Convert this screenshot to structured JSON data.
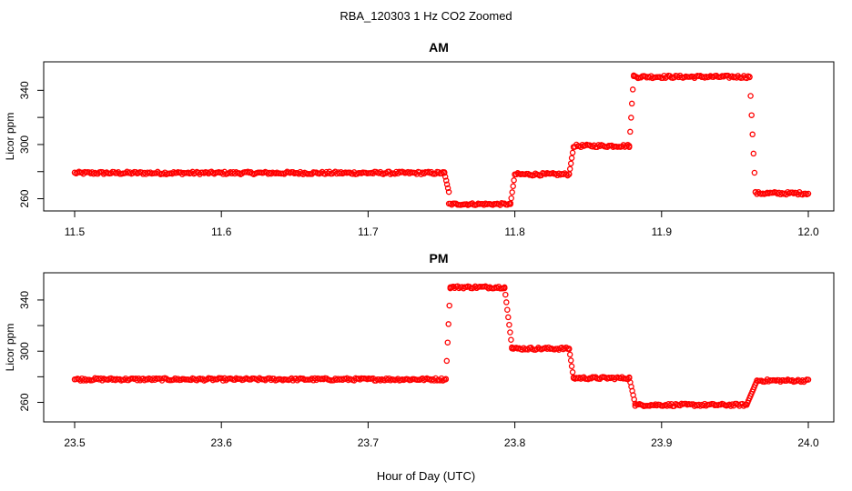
{
  "title": "RBA_120303  1 Hz CO2 Zoomed",
  "xlabel": "Hour of Day (UTC)",
  "chart_data": [
    {
      "type": "scatter",
      "title": "AM",
      "ylabel": "Licor ppm",
      "xlim": [
        11.5,
        12.0
      ],
      "ylim": [
        255,
        357
      ],
      "xticks": [
        11.5,
        11.6,
        11.7,
        11.8,
        11.9,
        12.0
      ],
      "xtick_labels": [
        "11.5",
        "11.6",
        "11.7",
        "11.8",
        "11.9",
        "12.0"
      ],
      "yticks": [
        260,
        280,
        300,
        320,
        340
      ],
      "ytick_labels": [
        "260",
        "",
        "300",
        "",
        "340"
      ],
      "marker_color": "#ff0000",
      "segments": [
        {
          "x": [
            11.5,
            11.752
          ],
          "y": 279,
          "noise": 1.0
        },
        {
          "x": [
            11.752,
            11.755
          ],
          "y": [
            279,
            265
          ],
          "noise": 0
        },
        {
          "x": [
            11.755,
            11.797
          ],
          "y": 256,
          "noise": 0.8
        },
        {
          "x": [
            11.797,
            11.8
          ],
          "y": [
            256,
            278
          ],
          "noise": 0
        },
        {
          "x": [
            11.8,
            11.837
          ],
          "y": 278,
          "noise": 1.0
        },
        {
          "x": [
            11.837,
            11.84
          ],
          "y": [
            278,
            298
          ],
          "noise": 0
        },
        {
          "x": [
            11.84,
            11.878
          ],
          "y": 299,
          "noise": 1.0
        },
        {
          "x": [
            11.878,
            11.881
          ],
          "y": [
            299,
            351
          ],
          "noise": 0
        },
        {
          "x": [
            11.881,
            11.96
          ],
          "y": 350,
          "noise": 1.0
        },
        {
          "x": [
            11.96,
            11.964
          ],
          "y": [
            350,
            265
          ],
          "noise": 0
        },
        {
          "x": [
            11.964,
            12.0
          ],
          "y": 264,
          "noise": 1.0
        }
      ]
    },
    {
      "type": "scatter",
      "title": "PM",
      "ylabel": "Licor ppm",
      "xlim": [
        23.5,
        24.0
      ],
      "ylim": [
        249,
        357
      ],
      "xticks": [
        23.5,
        23.6,
        23.7,
        23.8,
        23.9,
        24.0
      ],
      "xtick_labels": [
        "23.5",
        "23.6",
        "23.7",
        "23.8",
        "23.9",
        "24.0"
      ],
      "yticks": [
        260,
        280,
        300,
        320,
        340
      ],
      "ytick_labels": [
        "260",
        "",
        "300",
        "",
        "340"
      ],
      "marker_color": "#ff0000",
      "segments": [
        {
          "x": [
            23.5,
            23.753
          ],
          "y": 278,
          "noise": 1.0
        },
        {
          "x": [
            23.753,
            23.756
          ],
          "y": [
            278,
            350
          ],
          "noise": 0
        },
        {
          "x": [
            23.756,
            23.793
          ],
          "y": 350,
          "noise": 1.0
        },
        {
          "x": [
            23.793,
            23.798
          ],
          "y": [
            350,
            303
          ],
          "noise": 0
        },
        {
          "x": [
            23.798,
            23.837
          ],
          "y": 302,
          "noise": 1.0
        },
        {
          "x": [
            23.837,
            23.84
          ],
          "y": [
            302,
            279
          ],
          "noise": 0
        },
        {
          "x": [
            23.84,
            23.878
          ],
          "y": 279,
          "noise": 1.0
        },
        {
          "x": [
            23.878,
            23.882
          ],
          "y": [
            279,
            259
          ],
          "noise": 0
        },
        {
          "x": [
            23.882,
            23.958
          ],
          "y": 258,
          "noise": 1.0
        },
        {
          "x": [
            23.958,
            23.965
          ],
          "y": [
            258,
            277
          ],
          "noise": 0
        },
        {
          "x": [
            23.965,
            24.0
          ],
          "y": 277,
          "noise": 1.0
        }
      ]
    }
  ]
}
